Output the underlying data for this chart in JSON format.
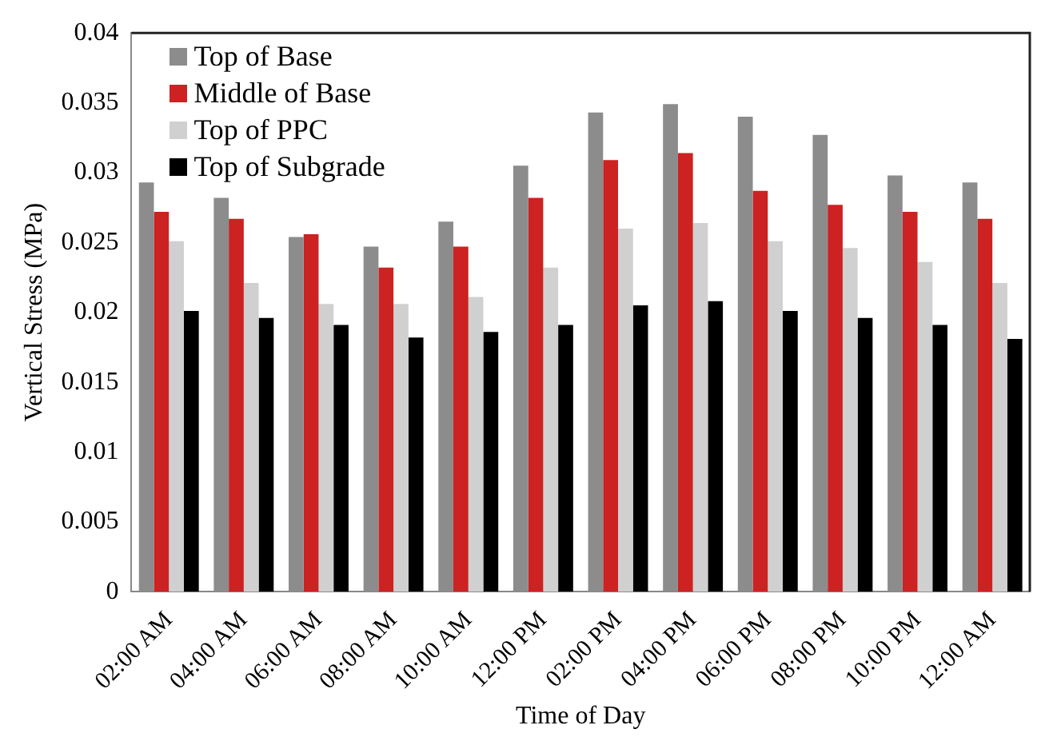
{
  "chart_data": {
    "type": "bar",
    "xlabel": "Time of Day",
    "ylabel": "Vertical Stress (MPa)",
    "categories": [
      "02:00 AM",
      "04:00 AM",
      "06:00 AM",
      "08:00 AM",
      "10:00 AM",
      "12:00 PM",
      "02:00 PM",
      "04:00 PM",
      "06:00 PM",
      "08:00 PM",
      "10:00 PM",
      "12:00 AM"
    ],
    "series": [
      {
        "name": "Top of Base",
        "color": "#8c8c8c",
        "values": [
          0.0293,
          0.0282,
          0.0254,
          0.0247,
          0.0265,
          0.0305,
          0.0343,
          0.0349,
          0.034,
          0.0327,
          0.0298,
          0.0293
        ]
      },
      {
        "name": "Middle of Base",
        "color": "#cc2222",
        "values": [
          0.0272,
          0.0267,
          0.0256,
          0.0232,
          0.0247,
          0.0282,
          0.0309,
          0.0314,
          0.0287,
          0.0277,
          0.0272,
          0.0267
        ]
      },
      {
        "name": "Top of PPC",
        "color": "#d0d0d0",
        "values": [
          0.0251,
          0.0221,
          0.0206,
          0.0206,
          0.0211,
          0.0232,
          0.026,
          0.0264,
          0.0251,
          0.0246,
          0.0236,
          0.0221
        ]
      },
      {
        "name": "Top of Subgrade",
        "color": "#000000",
        "values": [
          0.0201,
          0.0196,
          0.0191,
          0.0182,
          0.0186,
          0.0191,
          0.0205,
          0.0208,
          0.0201,
          0.0196,
          0.0191,
          0.0181
        ]
      }
    ],
    "ylim": [
      0,
      0.04
    ],
    "yticks": [
      0,
      0.005,
      0.01,
      0.015,
      0.02,
      0.025,
      0.03,
      0.035,
      0.04
    ],
    "grid": false,
    "legend": "top left"
  }
}
